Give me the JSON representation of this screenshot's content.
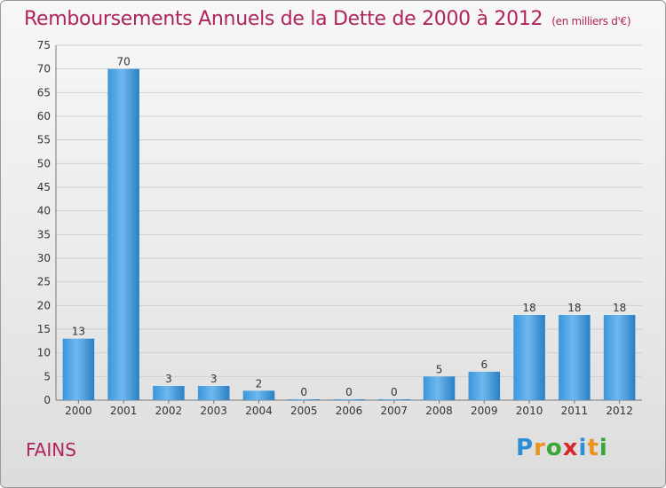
{
  "header": {
    "title": "Remboursements Annuels de la Dette de 2000 à 2012",
    "subtitle": "(en milliers d'€)"
  },
  "footer": {
    "town": "FAINS",
    "logo_letters": [
      "P",
      "r",
      "o",
      "x",
      "i",
      "t",
      "i"
    ],
    "logo_colors": [
      "#2a8fd6",
      "#e8931e",
      "#3aa63a",
      "#d9262c",
      "#2a8fd6",
      "#e8931e",
      "#3aa63a"
    ]
  },
  "chart_data": {
    "type": "bar",
    "title": "Remboursements Annuels de la Dette de 2000 à 2012",
    "xlabel": "",
    "ylabel": "",
    "categories": [
      "2000",
      "2001",
      "2002",
      "2003",
      "2004",
      "2005",
      "2006",
      "2007",
      "2008",
      "2009",
      "2010",
      "2011",
      "2012"
    ],
    "values": [
      13,
      70,
      3,
      3,
      2,
      0,
      0,
      0,
      5,
      6,
      18,
      18,
      18
    ],
    "data_labels": [
      "13",
      "70",
      "3",
      "3",
      "2",
      "0",
      "0",
      "0",
      "5",
      "6",
      "18",
      "18",
      "18"
    ],
    "ylim": [
      0,
      75
    ],
    "yticks": [
      "0",
      "5",
      "10",
      "15",
      "20",
      "25",
      "30",
      "35",
      "40",
      "45",
      "50",
      "55",
      "60",
      "65",
      "70",
      "75"
    ],
    "grid": true,
    "colors": {
      "bar": "#3a96dc",
      "bar_light": "#6fb8ee",
      "grid": "#cfcfcf"
    }
  }
}
